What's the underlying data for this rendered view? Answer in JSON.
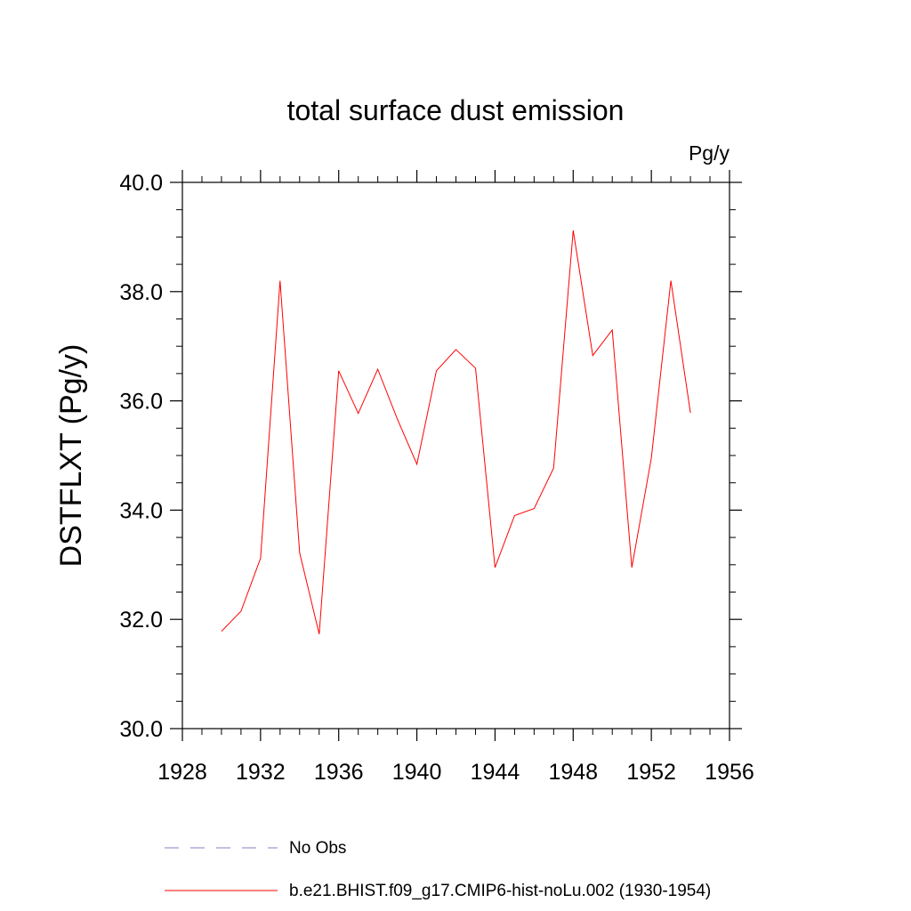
{
  "chart_data": {
    "type": "line",
    "title": "total surface dust emission",
    "units_label": "Pg/y",
    "ylabel": "DSTFLXT  (Pg/y)",
    "xlabel": "",
    "xlim": [
      1928,
      1956
    ],
    "ylim": [
      30.0,
      40.0
    ],
    "x_ticks": [
      1928,
      1932,
      1936,
      1940,
      1944,
      1948,
      1952,
      1956
    ],
    "y_ticks": [
      "30.0",
      "32.0",
      "34.0",
      "36.0",
      "38.0",
      "40.0"
    ],
    "grid": false,
    "legend_placement": "bottom",
    "series": [
      {
        "name": "b.e21.BHIST.f09_g17.CMIP6-hist-noLu.002 (1930-1954)",
        "color": "#ff0000",
        "style": "solid",
        "x": [
          1930,
          1931,
          1932,
          1933,
          1934,
          1935,
          1936,
          1937,
          1938,
          1939,
          1940,
          1941,
          1942,
          1943,
          1944,
          1945,
          1946,
          1947,
          1948,
          1949,
          1950,
          1951,
          1952,
          1953,
          1954
        ],
        "values": [
          31.78,
          32.15,
          33.12,
          38.2,
          33.22,
          31.73,
          36.55,
          35.77,
          36.58,
          35.67,
          34.84,
          36.55,
          36.94,
          36.6,
          32.95,
          33.9,
          34.03,
          34.77,
          39.12,
          36.83,
          37.3,
          32.95,
          34.95,
          38.2,
          35.78
        ]
      }
    ],
    "legend": [
      {
        "label": "No Obs",
        "color": "#8080c0",
        "style": "dashed"
      },
      {
        "label": "b.e21.BHIST.f09_g17.CMIP6-hist-noLu.002 (1930-1954)",
        "color": "#ff0000",
        "style": "solid"
      }
    ]
  }
}
